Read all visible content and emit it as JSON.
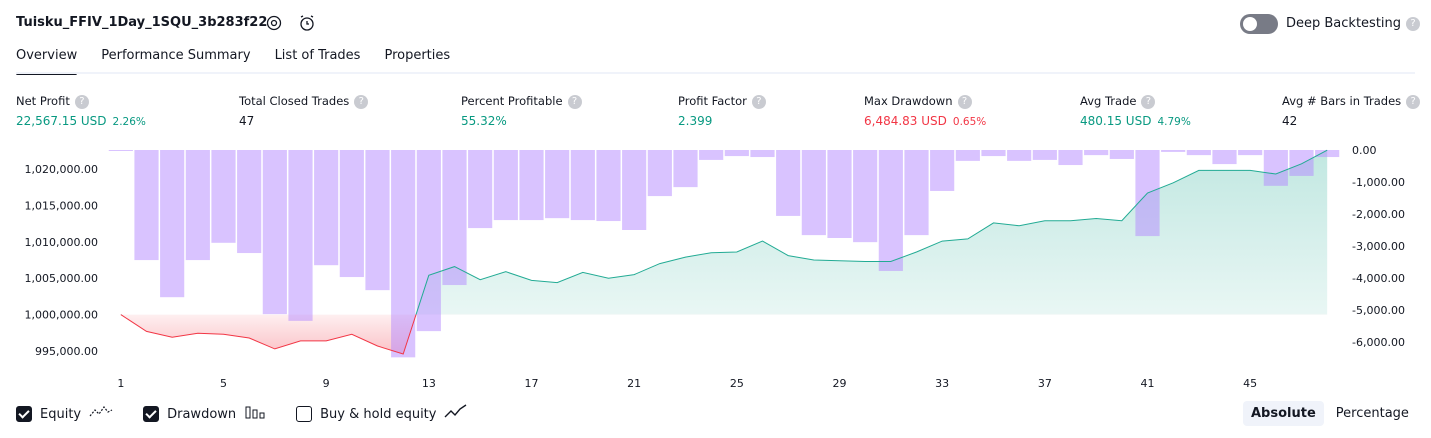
{
  "header": {
    "title": "Tuisku_FFIV_1Day_1SQU_3b283f22",
    "toggle_label": "Deep Backtesting",
    "toggle_on": false
  },
  "tabs": {
    "items": [
      "Overview",
      "Performance Summary",
      "List of Trades",
      "Properties"
    ],
    "active": 0
  },
  "metrics": [
    {
      "label": "Net Profit",
      "value": "22,567.15 USD",
      "pct": "2.26%",
      "color": "#089981"
    },
    {
      "label": "Total Closed Trades",
      "value": "47",
      "color": "#131722"
    },
    {
      "label": "Percent Profitable",
      "value": "55.32%",
      "color": "#089981"
    },
    {
      "label": "Profit Factor",
      "value": "2.399",
      "color": "#089981"
    },
    {
      "label": "Max Drawdown",
      "value": "6,484.83 USD",
      "pct": "0.65%",
      "color": "#f23645"
    },
    {
      "label": "Avg Trade",
      "value": "480.15 USD",
      "pct": "4.79%",
      "color": "#089981"
    },
    {
      "label": "Avg # Bars in Trades",
      "value": "42",
      "color": "#131722"
    }
  ],
  "chart_data": {
    "type": "combo",
    "x": [
      1,
      2,
      3,
      4,
      5,
      6,
      7,
      8,
      9,
      10,
      11,
      12,
      13,
      14,
      15,
      16,
      17,
      18,
      19,
      20,
      21,
      22,
      23,
      24,
      25,
      26,
      27,
      28,
      29,
      30,
      31,
      32,
      33,
      34,
      35,
      36,
      37,
      38,
      39,
      40,
      41,
      42,
      43,
      44,
      45,
      46,
      47,
      48
    ],
    "xlim": [
      0.5,
      48.5
    ],
    "xticks": [
      1,
      5,
      9,
      13,
      17,
      21,
      25,
      29,
      33,
      37,
      41,
      45
    ],
    "ylim": [
      993500,
      1022600
    ],
    "yticks": [
      {
        "value": 995000,
        "label": "995,000.00"
      },
      {
        "value": 1000000,
        "label": "1,000,000.00"
      },
      {
        "value": 1005000,
        "label": "1,005,000.00"
      },
      {
        "value": 1010000,
        "label": "1,010,000.00"
      },
      {
        "value": 1015000,
        "label": "1,015,000.00"
      },
      {
        "value": 1020000,
        "label": "1,020,000.00"
      }
    ],
    "y2lim": [
      -6625,
      0
    ],
    "y2ticks": [
      {
        "value": 0,
        "label": "0.00"
      },
      {
        "value": -1000,
        "label": "-1,000.00"
      },
      {
        "value": -2000,
        "label": "-2,000.00"
      },
      {
        "value": -3000,
        "label": "-3,000.00"
      },
      {
        "value": -4000,
        "label": "-4,000.00"
      },
      {
        "value": -5000,
        "label": "-5,000.00"
      },
      {
        "value": -6000,
        "label": "-6,000.00"
      }
    ],
    "series": [
      {
        "name": "Equity",
        "visible": true,
        "color": "#22ab94",
        "color_below": "#f23645",
        "values": [
          1000000,
          997700,
          996900,
          997450,
          997300,
          996800,
          995300,
          996400,
          996400,
          997300,
          995700,
          994600,
          1005400,
          1006600,
          1004800,
          1005900,
          1004700,
          1004400,
          1005800,
          1005000,
          1005500,
          1007000,
          1007900,
          1008500,
          1008600,
          1010100,
          1008100,
          1007500,
          1007400,
          1007300,
          1007300,
          1008600,
          1010100,
          1010400,
          1012600,
          1012200,
          1012900,
          1012900,
          1013200,
          1012900,
          1016700,
          1018100,
          1019800,
          1019800,
          1019800,
          1019300,
          1020700,
          1022567
        ]
      },
      {
        "name": "Drawdown",
        "visible": true,
        "axis": "y2",
        "color": "rgba(179,136,255,0.5)",
        "values": [
          0,
          -3440,
          -4600,
          -3440,
          -2900,
          -3220,
          -5130,
          -5340,
          -3600,
          -3970,
          -4380,
          -6480,
          -5660,
          -4220,
          -2440,
          -2190,
          -2190,
          -2130,
          -2190,
          -2220,
          -2500,
          -1440,
          -1160,
          -310,
          -190,
          -220,
          -2060,
          -2660,
          -2750,
          -2880,
          -3780,
          -2660,
          -1280,
          -340,
          -190,
          -340,
          -310,
          -470,
          -160,
          -280,
          -2690,
          -60,
          -160,
          -440,
          -160,
          -1120,
          -810,
          -220
        ]
      },
      {
        "name": "Buy & hold equity",
        "visible": false
      }
    ]
  },
  "scale_modes": {
    "items": [
      "Absolute",
      "Percentage"
    ],
    "active": 0
  }
}
